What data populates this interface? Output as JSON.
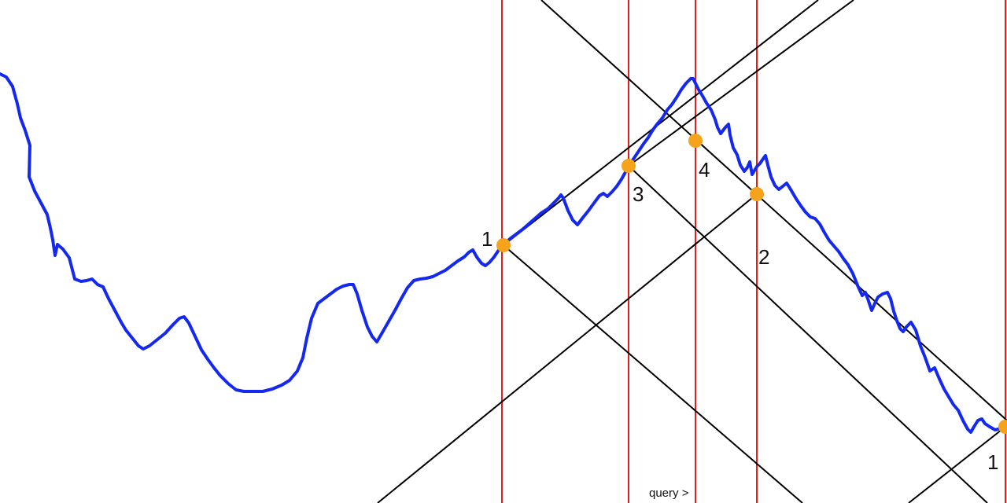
{
  "colors": {
    "background": "#ffffff",
    "price_line": "#1428f0",
    "vertical_lines": "#e01e1e",
    "diagonal_lines": "#000000",
    "markers": "#f5a31a",
    "text": "#111111"
  },
  "point_labels": [
    {
      "id": "p1",
      "text": "1"
    },
    {
      "id": "p2",
      "text": "2"
    },
    {
      "id": "p3",
      "text": "3"
    },
    {
      "id": "p4",
      "text": "4"
    },
    {
      "id": "p5",
      "text": "1"
    }
  ],
  "query_label": "query >"
}
